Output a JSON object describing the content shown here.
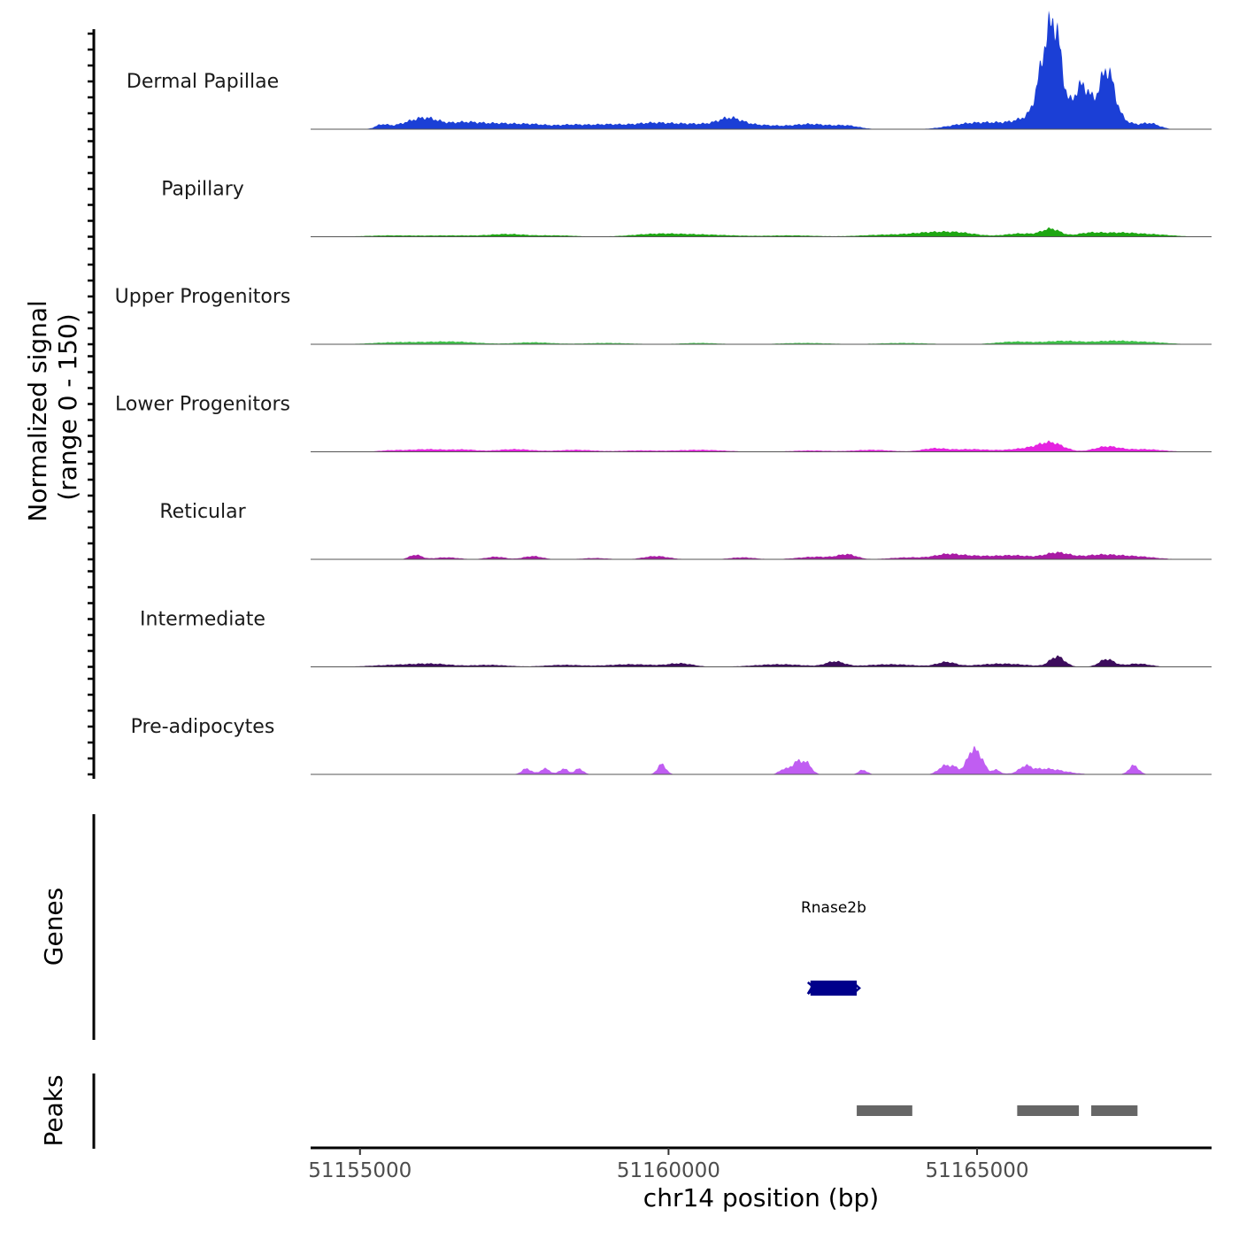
{
  "chart_data": {
    "type": "area",
    "title": "",
    "xlabel": "chr14 position (bp)",
    "ylabel": "Normalized signal\n(range 0 - 150)",
    "ylabel_lines": [
      "Normalized signal",
      "(range 0 - 150)"
    ],
    "ylim": [
      0,
      150
    ],
    "xlim": [
      51154200,
      51168800
    ],
    "x_ticks": [
      51155000,
      51160000,
      51165000
    ],
    "x_tick_labels": [
      "51155000",
      "51160000",
      "51165000"
    ],
    "series": [
      {
        "name": "Dermal Papillae",
        "color": "#1b3fd6",
        "bumps": [
          [
            51155350,
            100,
            6
          ],
          [
            51155800,
            250,
            9
          ],
          [
            51156100,
            200,
            12
          ],
          [
            51156700,
            300,
            11
          ],
          [
            51157300,
            250,
            7
          ],
          [
            51157800,
            250,
            7
          ],
          [
            51158400,
            250,
            6
          ],
          [
            51159000,
            300,
            7
          ],
          [
            51159700,
            300,
            8
          ],
          [
            51160400,
            400,
            8
          ],
          [
            51161000,
            200,
            14
          ],
          [
            51161500,
            300,
            6
          ],
          [
            51162300,
            300,
            8
          ],
          [
            51162900,
            200,
            5
          ],
          [
            51164800,
            300,
            7
          ],
          [
            51165300,
            300,
            8
          ],
          [
            51165900,
            250,
            18
          ],
          [
            51166100,
            120,
            88
          ],
          [
            51166280,
            110,
            126
          ],
          [
            51166700,
            150,
            69
          ],
          [
            51167100,
            120,
            84
          ],
          [
            51167300,
            200,
            14
          ],
          [
            51167800,
            150,
            9
          ]
        ]
      },
      {
        "name": "Papillary",
        "color": "#1ea612",
        "bumps": [
          [
            51155500,
            400,
            2
          ],
          [
            51156500,
            400,
            2
          ],
          [
            51157400,
            300,
            4
          ],
          [
            51158200,
            300,
            2
          ],
          [
            51159800,
            400,
            4
          ],
          [
            51160600,
            500,
            3
          ],
          [
            51162000,
            400,
            2
          ],
          [
            51163500,
            400,
            3
          ],
          [
            51164200,
            300,
            5
          ],
          [
            51164700,
            300,
            6
          ],
          [
            51165700,
            250,
            5
          ],
          [
            51166200,
            150,
            12
          ],
          [
            51166800,
            200,
            5
          ],
          [
            51167300,
            300,
            6
          ],
          [
            51167900,
            300,
            3
          ]
        ]
      },
      {
        "name": "Upper Progenitors",
        "color": "#3fc24a",
        "bumps": [
          [
            51155600,
            400,
            3
          ],
          [
            51156500,
            400,
            4
          ],
          [
            51157800,
            300,
            3
          ],
          [
            51159000,
            400,
            2
          ],
          [
            51160500,
            300,
            2
          ],
          [
            51162200,
            400,
            2
          ],
          [
            51163800,
            400,
            2
          ],
          [
            51165600,
            300,
            4
          ],
          [
            51166400,
            300,
            5
          ],
          [
            51167200,
            300,
            5
          ],
          [
            51167800,
            300,
            3
          ]
        ]
      },
      {
        "name": "Lower Progenitors",
        "color": "#e523e0",
        "bumps": [
          [
            51155500,
            200,
            2
          ],
          [
            51156100,
            300,
            4
          ],
          [
            51156700,
            200,
            3
          ],
          [
            51157500,
            300,
            4
          ],
          [
            51158500,
            300,
            3
          ],
          [
            51159500,
            300,
            2
          ],
          [
            51160500,
            400,
            3
          ],
          [
            51162300,
            300,
            2
          ],
          [
            51163300,
            300,
            3
          ],
          [
            51164300,
            200,
            5
          ],
          [
            51164900,
            300,
            4
          ],
          [
            51165800,
            300,
            5
          ],
          [
            51166200,
            200,
            13
          ],
          [
            51167100,
            200,
            8
          ],
          [
            51167700,
            300,
            4
          ]
        ]
      },
      {
        "name": "Reticular",
        "color": "#a81aa4",
        "bumps": [
          [
            51155900,
            100,
            7
          ],
          [
            51156400,
            200,
            3
          ],
          [
            51157200,
            150,
            4
          ],
          [
            51157800,
            150,
            5
          ],
          [
            51158800,
            200,
            2
          ],
          [
            51159800,
            200,
            5
          ],
          [
            51161200,
            200,
            3
          ],
          [
            51162400,
            300,
            4
          ],
          [
            51162900,
            150,
            7
          ],
          [
            51163900,
            300,
            3
          ],
          [
            51164500,
            200,
            6
          ],
          [
            51164900,
            300,
            5
          ],
          [
            51165600,
            300,
            6
          ],
          [
            51166300,
            200,
            10
          ],
          [
            51167000,
            300,
            7
          ],
          [
            51167600,
            300,
            4
          ]
        ]
      },
      {
        "name": "Intermediate",
        "color": "#3d0d5c",
        "bumps": [
          [
            51155600,
            400,
            3
          ],
          [
            51156200,
            300,
            4
          ],
          [
            51157100,
            300,
            3
          ],
          [
            51158300,
            300,
            3
          ],
          [
            51159400,
            400,
            4
          ],
          [
            51160200,
            200,
            5
          ],
          [
            51161800,
            400,
            4
          ],
          [
            51162700,
            150,
            8
          ],
          [
            51163600,
            400,
            4
          ],
          [
            51164500,
            150,
            7
          ],
          [
            51165400,
            400,
            5
          ],
          [
            51166300,
            120,
            16
          ],
          [
            51167100,
            120,
            12
          ],
          [
            51167600,
            200,
            5
          ]
        ]
      },
      {
        "name": "Pre-adipocytes",
        "color": "#c05df2",
        "bumps": [
          [
            51157700,
            80,
            9
          ],
          [
            51158000,
            80,
            9
          ],
          [
            51158300,
            70,
            9
          ],
          [
            51158550,
            70,
            9
          ],
          [
            51159890,
            70,
            16
          ],
          [
            51161850,
            70,
            7
          ],
          [
            51162080,
            100,
            19
          ],
          [
            51162250,
            80,
            14
          ],
          [
            51163150,
            70,
            7
          ],
          [
            51164470,
            100,
            13
          ],
          [
            51164640,
            80,
            9
          ],
          [
            51164920,
            90,
            37
          ],
          [
            51165070,
            70,
            19
          ],
          [
            51165300,
            70,
            7
          ],
          [
            51165780,
            90,
            9
          ],
          [
            51166100,
            300,
            9
          ],
          [
            51167540,
            80,
            14
          ]
        ]
      }
    ],
    "genes": {
      "title": "Genes",
      "items": [
        {
          "name": "Rnase2b",
          "start": 51162300,
          "end": 51163050,
          "strand": "-",
          "color": "#00008b"
        }
      ]
    },
    "peaks": {
      "title": "Peaks",
      "color": "#666666",
      "regions": [
        [
          51163050,
          51163950
        ],
        [
          51165650,
          51166650
        ],
        [
          51166850,
          51167600
        ]
      ]
    }
  }
}
